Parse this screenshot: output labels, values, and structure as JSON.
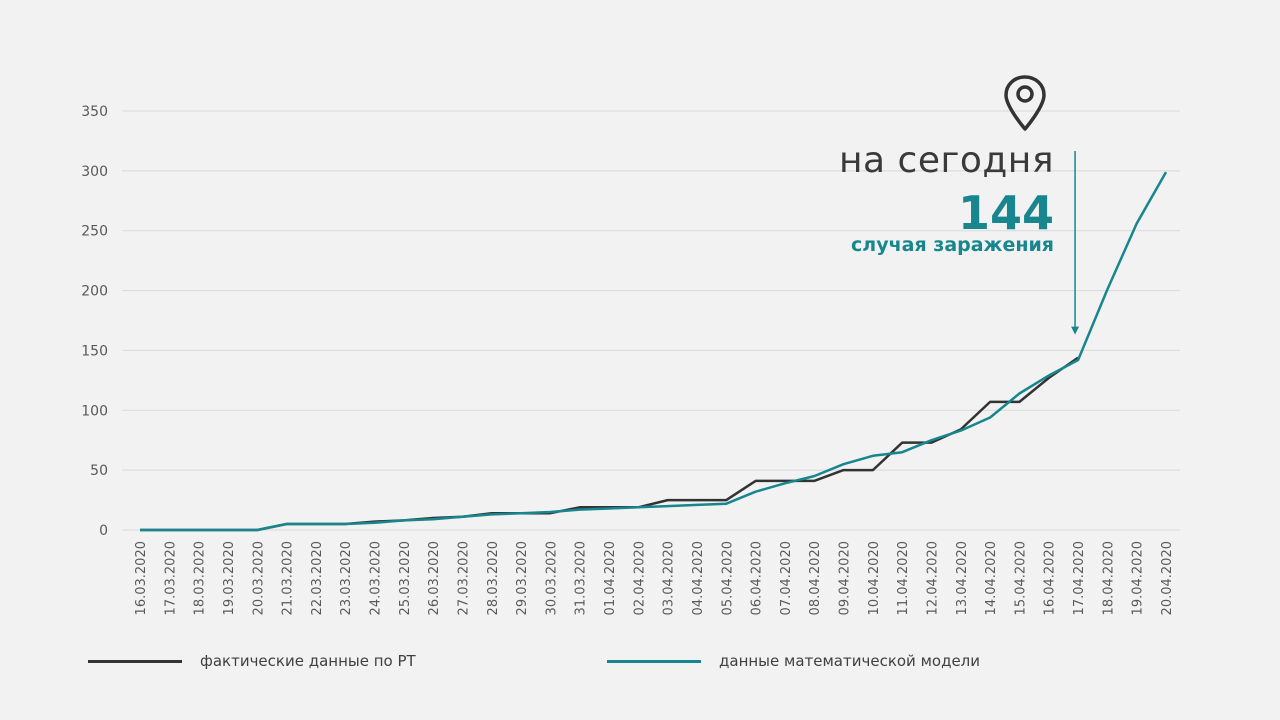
{
  "annotation": {
    "title": "на сегодня",
    "count": "144",
    "caption": "случая заражения"
  },
  "legend": {
    "actual_label": "фактические данные по РТ",
    "model_label": "данные математической модели"
  },
  "colors": {
    "actual": "#333333",
    "model": "#17868e",
    "grid": "#d9d9d9",
    "axis_text": "#595959",
    "arrow": "#17868e",
    "pin": "#333333"
  },
  "chart_data": {
    "type": "line",
    "ylim": [
      0,
      350
    ],
    "yticks": [
      0,
      50,
      100,
      150,
      200,
      250,
      300,
      350
    ],
    "grid": true,
    "legend_position": "bottom",
    "categories": [
      "16.03.2020",
      "17.03.2020",
      "18.03.2020",
      "19.03.2020",
      "20.03.2020",
      "21.03.2020",
      "22.03.2020",
      "23.03.2020",
      "24.03.2020",
      "25.03.2020",
      "26.03.2020",
      "27.03.2020",
      "28.03.2020",
      "29.03.2020",
      "30.03.2020",
      "31.03.2020",
      "01.04.2020",
      "02.04.2020",
      "03.04.2020",
      "04.04.2020",
      "05.04.2020",
      "06.04.2020",
      "07.04.2020",
      "08.04.2020",
      "09.04.2020",
      "10.04.2020",
      "11.04.2020",
      "12.04.2020",
      "13.04.2020",
      "14.04.2020",
      "15.04.2020",
      "16.04.2020",
      "17.04.2020",
      "18.04.2020",
      "19.04.2020",
      "20.04.2020"
    ],
    "series": [
      {
        "name": "фактические данные по РТ",
        "values": [
          0,
          0,
          0,
          0,
          0,
          5,
          5,
          5,
          7,
          8,
          10,
          11,
          14,
          14,
          14,
          19,
          19,
          19,
          25,
          25,
          25,
          41,
          41,
          41,
          50,
          50,
          73,
          73,
          84,
          107,
          107,
          127,
          144,
          null,
          null,
          null
        ]
      },
      {
        "name": "данные математической модели",
        "values": [
          0,
          0,
          0,
          0,
          0,
          5,
          5,
          5,
          6,
          8,
          9,
          11,
          13,
          14,
          15,
          17,
          18,
          19,
          20,
          21,
          22,
          32,
          39,
          45,
          55,
          62,
          65,
          75,
          83,
          94,
          114,
          129,
          142,
          201,
          256,
          299
        ]
      }
    ],
    "today_index": 32
  }
}
